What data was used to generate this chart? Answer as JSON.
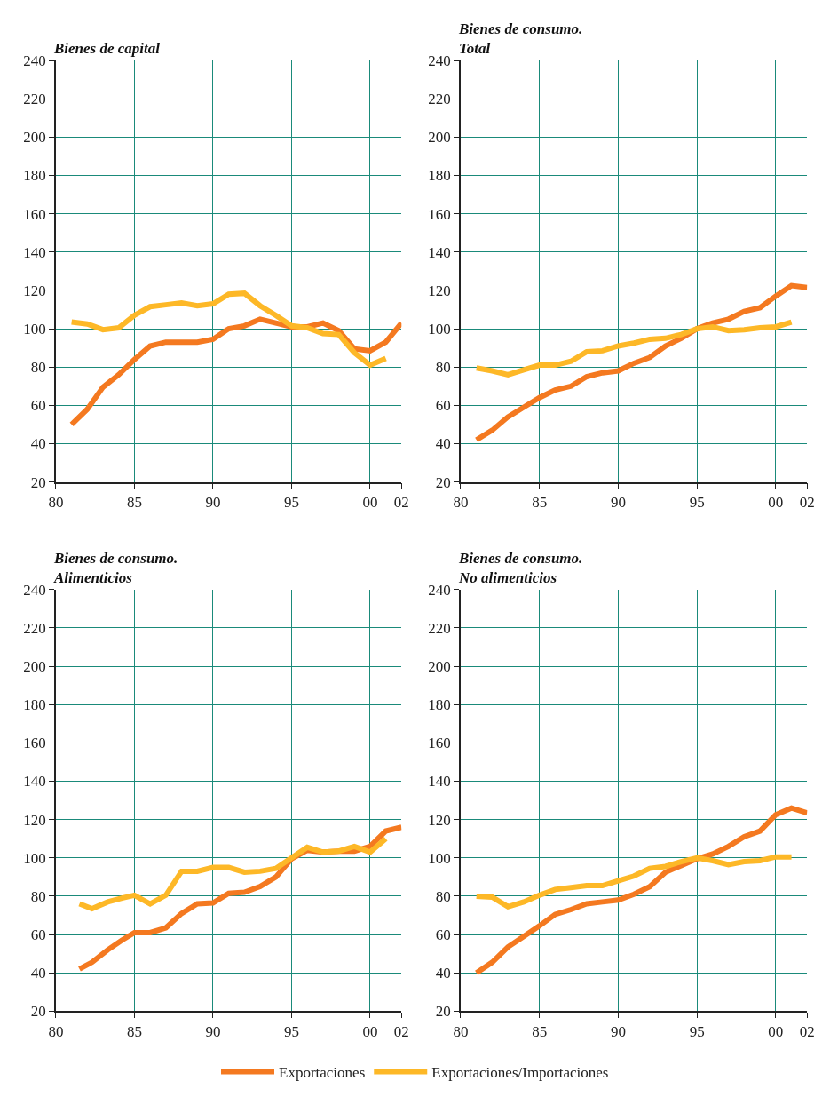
{
  "chart_data": [
    {
      "type": "line",
      "title": "Bienes de capital",
      "xlim": [
        1980,
        2002
      ],
      "xticks": [
        {
          "value": 1980,
          "label": "80"
        },
        {
          "value": 1985,
          "label": "85"
        },
        {
          "value": 1990,
          "label": "90"
        },
        {
          "value": 1995,
          "label": "95"
        },
        {
          "value": 2000,
          "label": "00"
        },
        {
          "value": 2002,
          "label": "02"
        }
      ],
      "ylim": [
        20,
        240
      ],
      "yticks": [
        20,
        40,
        60,
        80,
        100,
        120,
        140,
        160,
        180,
        200,
        220,
        240
      ],
      "grid": true,
      "legend": "bottom",
      "line_style": "solid",
      "marker": "none",
      "series": [
        {
          "name": "Exportaciones",
          "color": "#f47920",
          "x": [
            1981,
            1982,
            1983,
            1984,
            1985,
            1986,
            1987,
            1988,
            1989,
            1990,
            1991,
            1992,
            1993,
            1994,
            1995,
            1996,
            1997,
            1998,
            1999,
            2000,
            2001,
            2002
          ],
          "values": [
            50,
            58,
            69.5,
            76,
            84,
            91,
            93,
            93,
            93,
            94.5,
            100,
            101.5,
            105,
            103,
            101,
            101,
            103,
            99,
            89.5,
            88.5,
            93,
            103
          ]
        },
        {
          "name": "Exportaciones/Importaciones",
          "color": "#fdb827",
          "x": [
            1981,
            1982,
            1983,
            1984,
            1985,
            1986,
            1987,
            1988,
            1989,
            1990,
            1991,
            1992,
            1993,
            1994,
            1995,
            1996,
            1997,
            1998,
            1999,
            2000,
            2001
          ],
          "values": [
            103.5,
            102.5,
            99.5,
            100.5,
            107,
            111.5,
            112.5,
            113.5,
            112,
            113,
            118,
            118.5,
            112,
            107,
            101.5,
            100.5,
            97.5,
            97,
            87.5,
            81,
            84.5
          ]
        }
      ]
    },
    {
      "type": "line",
      "title": "Bienes de consumo.\nTotal",
      "xlim": [
        1980,
        2002
      ],
      "xticks": [
        {
          "value": 1980,
          "label": "80"
        },
        {
          "value": 1985,
          "label": "85"
        },
        {
          "value": 1990,
          "label": "90"
        },
        {
          "value": 1995,
          "label": "95"
        },
        {
          "value": 2000,
          "label": "00"
        },
        {
          "value": 2002,
          "label": "02"
        }
      ],
      "ylim": [
        20,
        240
      ],
      "yticks": [
        20,
        40,
        60,
        80,
        100,
        120,
        140,
        160,
        180,
        200,
        220,
        240
      ],
      "grid": true,
      "legend": "bottom",
      "line_style": "solid",
      "marker": "none",
      "series": [
        {
          "name": "Exportaciones",
          "color": "#f47920",
          "x": [
            1981,
            1982,
            1983,
            1984,
            1985,
            1986,
            1987,
            1988,
            1989,
            1990,
            1991,
            1992,
            1993,
            1994,
            1995,
            1996,
            1997,
            1998,
            1999,
            2000,
            2001,
            2002
          ],
          "values": [
            42,
            47,
            54,
            59,
            64,
            68,
            70,
            75,
            77,
            78,
            82,
            85,
            91,
            95,
            100,
            103,
            105,
            109,
            111,
            117,
            122.5,
            121.5
          ]
        },
        {
          "name": "Exportaciones/Importaciones",
          "color": "#fdb827",
          "x": [
            1981,
            1982,
            1983,
            1984,
            1985,
            1986,
            1987,
            1988,
            1989,
            1990,
            1991,
            1992,
            1993,
            1994,
            1995,
            1996,
            1997,
            1998,
            1999,
            2000,
            2001
          ],
          "values": [
            79.5,
            78,
            76,
            78.5,
            81,
            81,
            83,
            88,
            88.5,
            91,
            92.5,
            94.5,
            95,
            97,
            100,
            101,
            99,
            99.5,
            100.5,
            101,
            103.5
          ]
        }
      ]
    },
    {
      "type": "line",
      "title": "Bienes de consumo.\nAlimenticios",
      "xlim": [
        1980,
        2002
      ],
      "xticks": [
        {
          "value": 1980,
          "label": "80"
        },
        {
          "value": 1985,
          "label": "85"
        },
        {
          "value": 1990,
          "label": "90"
        },
        {
          "value": 1995,
          "label": "95"
        },
        {
          "value": 2000,
          "label": "00"
        },
        {
          "value": 2002,
          "label": "02"
        }
      ],
      "ylim": [
        20,
        240
      ],
      "yticks": [
        20,
        40,
        60,
        80,
        100,
        120,
        140,
        160,
        180,
        200,
        220,
        240
      ],
      "grid": true,
      "legend": "bottom",
      "line_style": "solid",
      "marker": "none",
      "series": [
        {
          "name": "Exportaciones",
          "color": "#f47920",
          "x": [
            1981.5,
            1982.3,
            1983.3,
            1984.2,
            1985,
            1986,
            1987,
            1988,
            1989,
            1990,
            1991,
            1992,
            1993,
            1994,
            1995,
            1996,
            1997,
            1998,
            1999,
            2000,
            2001,
            2002
          ],
          "values": [
            42,
            45.5,
            52,
            57,
            61,
            61,
            63.5,
            71,
            76,
            76.5,
            81.5,
            82,
            85,
            90,
            99.5,
            104,
            103,
            103.5,
            103.5,
            106,
            114,
            116
          ]
        },
        {
          "name": "Exportaciones/Importaciones",
          "color": "#fdb827",
          "x": [
            1981.5,
            1982.3,
            1983.3,
            1984.2,
            1985,
            1986,
            1987,
            1988,
            1989,
            1990,
            1991,
            1992,
            1993,
            1994,
            1995,
            1996,
            1997,
            1998,
            1999,
            2000,
            2001
          ],
          "values": [
            76,
            73.5,
            77,
            79,
            80.5,
            76,
            80.5,
            93,
            93,
            95,
            95,
            92.5,
            93,
            94.5,
            100,
            105.5,
            103,
            103.5,
            106,
            103,
            110
          ]
        }
      ]
    },
    {
      "type": "line",
      "title": "Bienes de consumo.\nNo alimenticios",
      "xlim": [
        1980,
        2002
      ],
      "xticks": [
        {
          "value": 1980,
          "label": "80"
        },
        {
          "value": 1985,
          "label": "85"
        },
        {
          "value": 1990,
          "label": "90"
        },
        {
          "value": 1995,
          "label": "95"
        },
        {
          "value": 2000,
          "label": "00"
        },
        {
          "value": 2002,
          "label": "02"
        }
      ],
      "ylim": [
        20,
        240
      ],
      "yticks": [
        20,
        40,
        60,
        80,
        100,
        120,
        140,
        160,
        180,
        200,
        220,
        240
      ],
      "grid": true,
      "legend": "bottom",
      "line_style": "solid",
      "marker": "none",
      "series": [
        {
          "name": "Exportaciones",
          "color": "#f47920",
          "x": [
            1981,
            1982,
            1983,
            1984,
            1985,
            1986,
            1987,
            1988,
            1989,
            1990,
            1991,
            1992,
            1993,
            1994,
            1995,
            1996,
            1997,
            1998,
            1999,
            2000,
            2001,
            2002
          ],
          "values": [
            40,
            45.5,
            53.5,
            59,
            64.5,
            70.5,
            73,
            76,
            77,
            78,
            81,
            85,
            92.5,
            96,
            99.5,
            102,
            106,
            111,
            114,
            122.5,
            126,
            123.5
          ]
        },
        {
          "name": "Exportaciones/Importaciones",
          "color": "#fdb827",
          "x": [
            1981,
            1982,
            1983,
            1984,
            1985,
            1986,
            1987,
            1988,
            1989,
            1990,
            1991,
            1992,
            1993,
            1994,
            1995,
            1996,
            1997,
            1998,
            1999,
            2000,
            2001
          ],
          "values": [
            80,
            79.5,
            74.5,
            77,
            80.5,
            83.5,
            84.5,
            85.5,
            85.5,
            88,
            90.5,
            94.5,
            95.5,
            98,
            100,
            98.5,
            96.5,
            98,
            98.5,
            100.5,
            100.5
          ]
        }
      ]
    }
  ]
}
